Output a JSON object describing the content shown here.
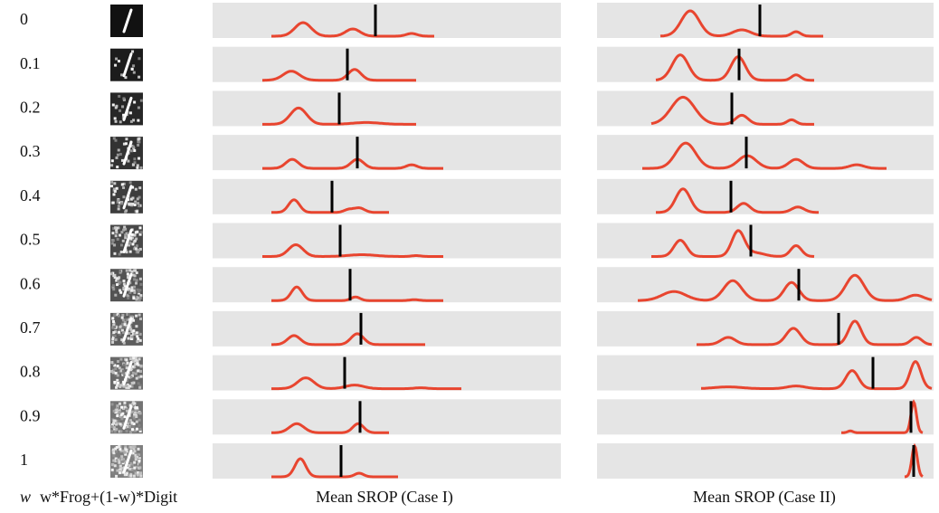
{
  "rows": [
    {
      "w": "0"
    },
    {
      "w": "0.1"
    },
    {
      "w": "0.2"
    },
    {
      "w": "0.3"
    },
    {
      "w": "0.4"
    },
    {
      "w": "0.5"
    },
    {
      "w": "0.6"
    },
    {
      "w": "0.7"
    },
    {
      "w": "0.8"
    },
    {
      "w": "0.9"
    },
    {
      "w": "1"
    }
  ],
  "footer": {
    "w": "w",
    "mix": "w*Frog+(1-w)*Digit",
    "case1": "Mean SROP (Case I)",
    "case2": "Mean SROP (Case II)"
  }
}
